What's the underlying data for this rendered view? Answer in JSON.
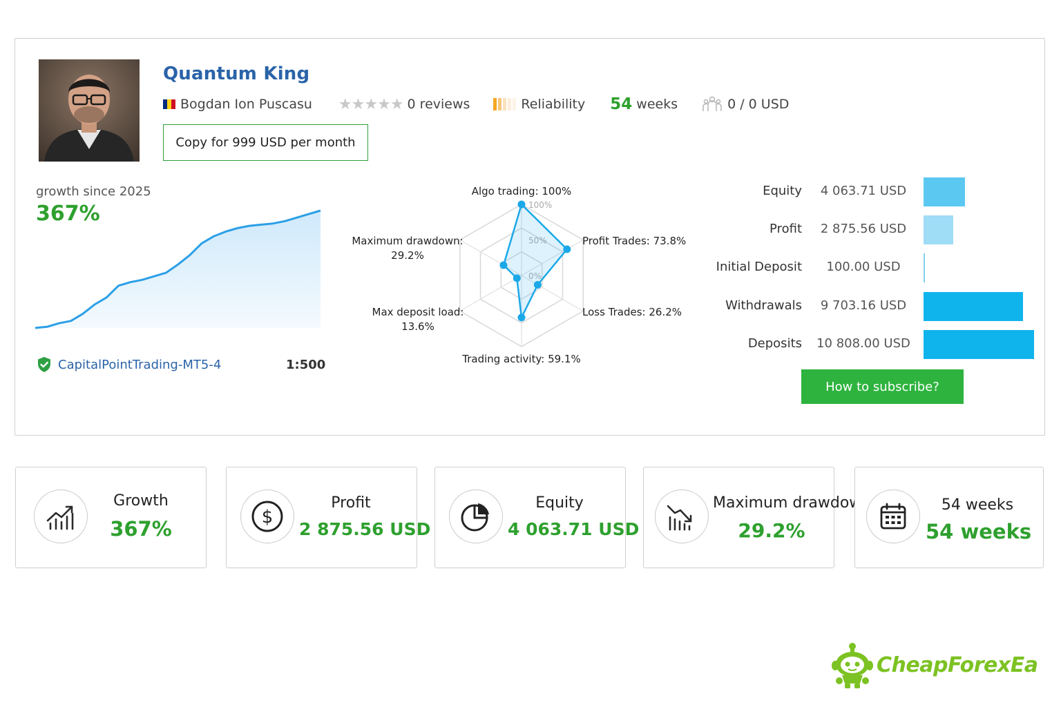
{
  "header": {
    "title": "Quantum King",
    "author": "Bogdan Ion Puscasu",
    "reviews": "0 reviews",
    "reliability_label": "Reliability",
    "weeks_number": "54",
    "weeks_label": "weeks",
    "subscribers": "0 / 0 USD",
    "copy_button": "Copy for 999 USD per month",
    "flag_colors": [
      "#002b7f",
      "#fcd116",
      "#ce1126"
    ]
  },
  "growth": {
    "label": "growth since 2025",
    "value": "367%",
    "server": "CapitalPointTrading-MT5-4",
    "leverage": "1:500",
    "curve": [
      0.0,
      0.01,
      0.04,
      0.06,
      0.12,
      0.2,
      0.26,
      0.36,
      0.39,
      0.41,
      0.44,
      0.47,
      0.54,
      0.62,
      0.72,
      0.78,
      0.82,
      0.85,
      0.87,
      0.88,
      0.89,
      0.91,
      0.94,
      0.97,
      1.0
    ]
  },
  "radar": {
    "axes": [
      {
        "label": "Algo trading: 100%",
        "value": 100
      },
      {
        "label": "Profit Trades: 73.8%",
        "value": 73.8
      },
      {
        "label": "Loss Trades: 26.2%",
        "value": 26.2
      },
      {
        "label": "Trading activity: 59.1%",
        "value": 59.1
      },
      {
        "label_line1": "Max deposit load:",
        "label_line2": "13.6%",
        "value": 13.6
      },
      {
        "label_line1": "Maximum drawdown:",
        "label_line2": "29.2%",
        "value": 29.2
      }
    ],
    "ticks": [
      "100%",
      "50%",
      "0%"
    ],
    "color": "#1ba8e8"
  },
  "financials": [
    {
      "label": "Equity",
      "value": "4 063.71 USD",
      "fraction": 0.376,
      "color": "#5bc8f2"
    },
    {
      "label": "Profit",
      "value": "2 875.56 USD",
      "fraction": 0.266,
      "color": "#9fdcf6"
    },
    {
      "label": "Initial Deposit",
      "value": "100.00 USD",
      "fraction": 0.009,
      "color": "#7fd0f3"
    },
    {
      "label": "Withdrawals",
      "value": "9 703.16 USD",
      "fraction": 0.898,
      "color": "#10b4ec"
    },
    {
      "label": "Deposits",
      "value": "10 808.00 USD",
      "fraction": 1.0,
      "color": "#10b4ec"
    }
  ],
  "subscribe_button": "How to subscribe?",
  "stats": [
    {
      "icon": "growth-chart-icon",
      "label": "Growth",
      "value": "367%"
    },
    {
      "icon": "dollar-icon",
      "label": "Profit",
      "value": "2 875.56 USD"
    },
    {
      "icon": "pie-chart-icon",
      "label": "Equity",
      "value": "4 063.71 USD"
    },
    {
      "icon": "drawdown-icon",
      "label": "Maximum drawdown",
      "value": "29.2%"
    },
    {
      "icon": "calendar-icon",
      "label": "54 weeks",
      "value": "54 weeks"
    }
  ],
  "brand": {
    "name": "CheapForexEa",
    "color": "#7cc222"
  }
}
